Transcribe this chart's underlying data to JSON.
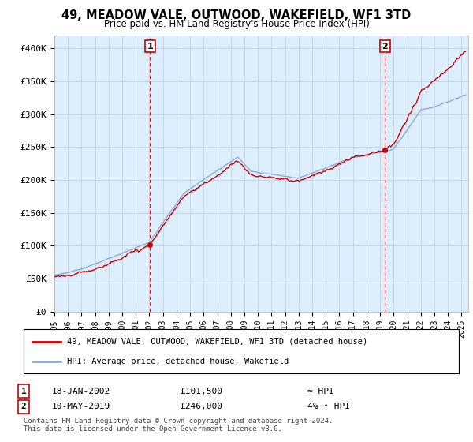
{
  "title": "49, MEADOW VALE, OUTWOOD, WAKEFIELD, WF1 3TD",
  "subtitle": "Price paid vs. HM Land Registry's House Price Index (HPI)",
  "ylim": [
    0,
    420000
  ],
  "yticks": [
    0,
    50000,
    100000,
    150000,
    200000,
    250000,
    300000,
    350000,
    400000
  ],
  "ytick_labels": [
    "£0",
    "£50K",
    "£100K",
    "£150K",
    "£200K",
    "£250K",
    "£300K",
    "£350K",
    "£400K"
  ],
  "sale1_date": 2002.05,
  "sale1_price": 101500,
  "sale2_date": 2019.37,
  "sale2_price": 246000,
  "legend_line1": "49, MEADOW VALE, OUTWOOD, WAKEFIELD, WF1 3TD (detached house)",
  "legend_line2": "HPI: Average price, detached house, Wakefield",
  "annotation1_date": "18-JAN-2002",
  "annotation1_price": "£101,500",
  "annotation1_hpi": "≈ HPI",
  "annotation2_date": "10-MAY-2019",
  "annotation2_price": "£246,000",
  "annotation2_hpi": "4% ↑ HPI",
  "footer": "Contains HM Land Registry data © Crown copyright and database right 2024.\nThis data is licensed under the Open Government Licence v3.0.",
  "property_color": "#cc0000",
  "hpi_color": "#88aadd",
  "vline_color": "#cc0000",
  "background_color": "#ffffff",
  "plot_bg_color": "#ddeeff",
  "grid_color": "#bbccdd"
}
